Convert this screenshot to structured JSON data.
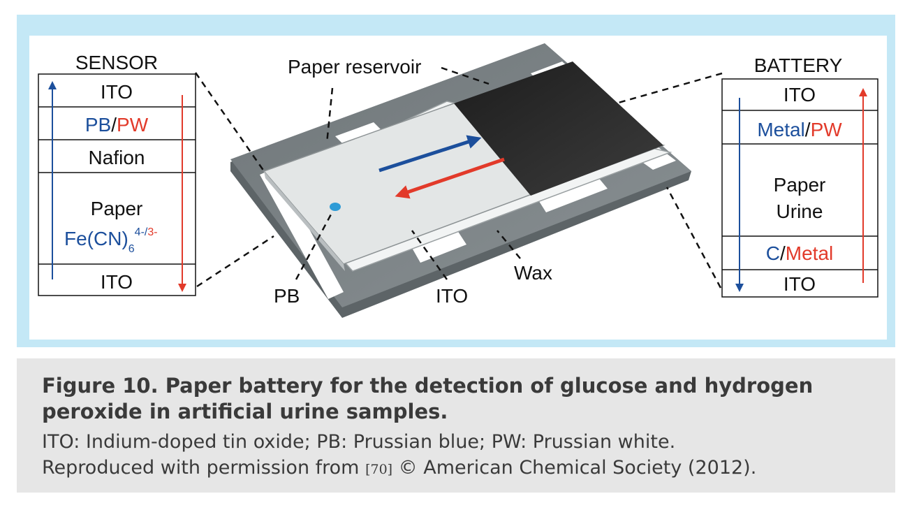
{
  "figure": {
    "sensor": {
      "title": "SENSOR",
      "layers": {
        "top": "ITO",
        "pb": "PB",
        "slash": "/",
        "pw": "PW",
        "nafion": "Nafion",
        "paper": "Paper",
        "fe": "Fe(CN)",
        "sub": "6",
        "sup_a": "4-/",
        "sup_b": "3-",
        "bottom": "ITO"
      }
    },
    "battery": {
      "title": "BATTERY",
      "layers": {
        "top": "ITO",
        "metal_a": "Metal",
        "slash_a": "/",
        "pw": "PW",
        "paper": "Paper",
        "urine": "Urine",
        "c": "C",
        "slash_b": "/",
        "metal_b": "Metal",
        "bottom": "ITO"
      }
    },
    "device_labels": {
      "reservoir": "Paper reservoir",
      "pb": "PB",
      "ito": "ITO",
      "wax": "Wax"
    },
    "colors": {
      "blue": "#1c4f9c",
      "red": "#e23a2a",
      "frame": "#c4e8f6",
      "wax": "#7a8184",
      "ito": "#e3e6e6",
      "dark_pad": "#2a2a2a"
    }
  },
  "caption": {
    "title": "Figure 10. Paper battery for the detection of glucose and hydrogen peroxide in artificial urine samples.",
    "line1": "ITO: Indium-doped tin oxide; PB: Prussian blue; PW: Prussian white.",
    "line2_a": "Reproduced with permission from ",
    "line2_ref": "[70]",
    "line2_b": " © American Chemical Society (2012)."
  }
}
